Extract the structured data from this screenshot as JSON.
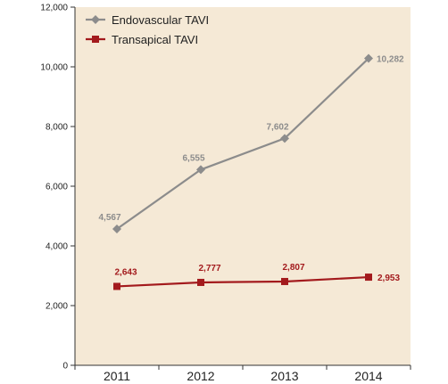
{
  "chart_data": {
    "type": "line",
    "categories": [
      "2011",
      "2012",
      "2013",
      "2014"
    ],
    "y_ticks": [
      "0",
      "2,000",
      "4,000",
      "6,000",
      "8,000",
      "10,000",
      "12,000"
    ],
    "ylim": [
      0,
      12000
    ],
    "grid": false,
    "legend_position": "top-left",
    "series": [
      {
        "name": "Endovascular TAVI",
        "values": [
          4567,
          6555,
          7602,
          10282
        ],
        "labels": [
          "4,567",
          "6,555",
          "7,602",
          "10,282"
        ],
        "color": "#8c8c8c",
        "marker": "diamond"
      },
      {
        "name": "Transapical TAVI",
        "values": [
          2643,
          2777,
          2807,
          2953
        ],
        "labels": [
          "2,643",
          "2,777",
          "2,807",
          "2,953"
        ],
        "color": "#a31a1d",
        "marker": "square"
      }
    ]
  }
}
